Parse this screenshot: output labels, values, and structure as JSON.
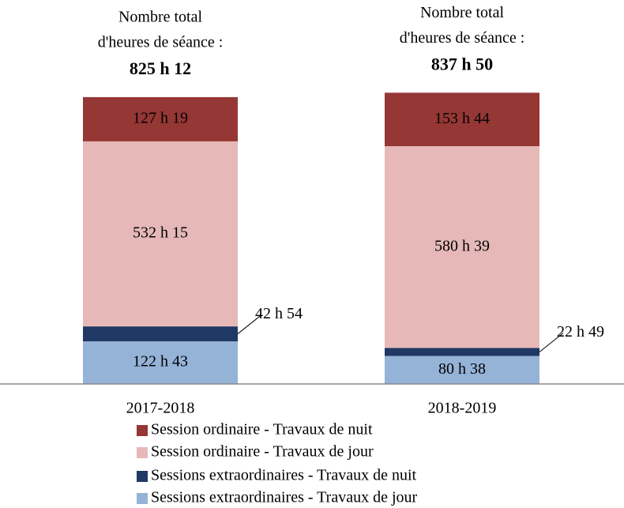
{
  "chart_data": {
    "type": "stacked_bar",
    "categories": [
      "2017-2018",
      "2018-2019"
    ],
    "series": [
      {
        "name": "Session ordinaire - Travaux de nuit",
        "color": "#953735",
        "values": [
          127.3167,
          153.7333
        ],
        "value_labels": [
          "127 h 19",
          "153 h 44"
        ]
      },
      {
        "name": "Session ordinaire - Travaux de jour",
        "color": "#e6b9b8",
        "values": [
          532.25,
          580.65
        ],
        "value_labels": [
          "532 h 15",
          "580 h 39"
        ]
      },
      {
        "name": "Sessions extraordinaires - Travaux de nuit",
        "color": "#1f3864",
        "values": [
          42.9,
          22.8167
        ],
        "value_labels": [
          "42 h 54",
          "22 h 49"
        ]
      },
      {
        "name": "Sessions extraordinaires - Travaux de jour",
        "color": "#95b3d7",
        "values": [
          122.7167,
          80.6333
        ],
        "value_labels": [
          "122 h 43",
          "80 h 38"
        ]
      }
    ],
    "total_caption": [
      "Nombre total",
      "d'heures de séance :"
    ],
    "totals": [
      825.2,
      837.8333
    ],
    "total_labels": [
      "825 h 12",
      "837 h 50"
    ]
  }
}
